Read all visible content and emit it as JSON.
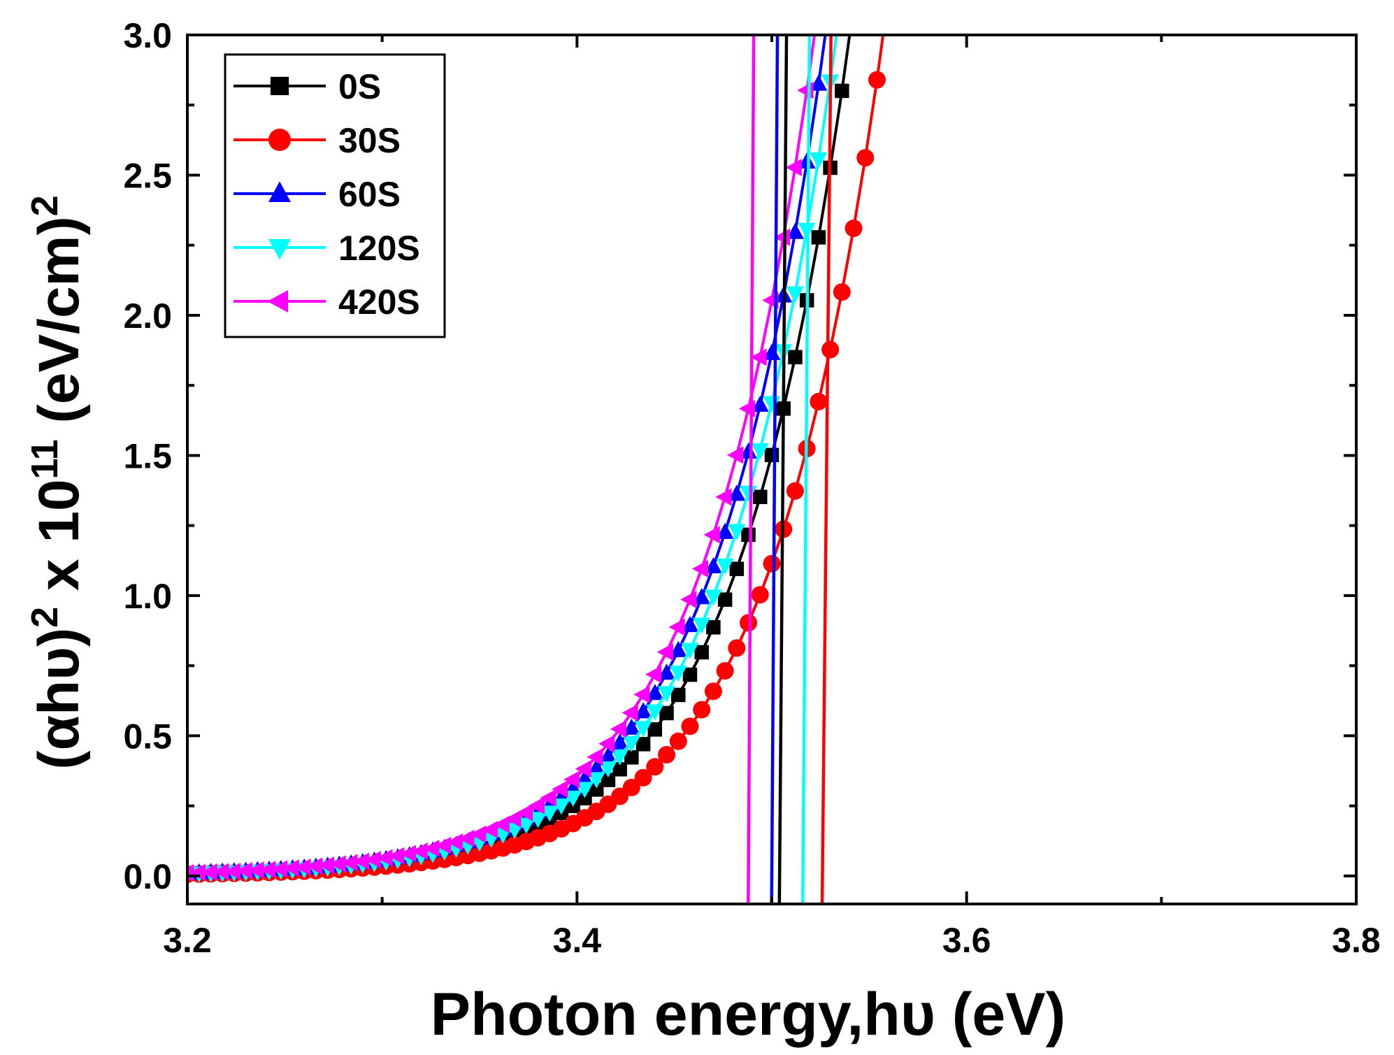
{
  "chart_data": {
    "type": "scatter",
    "title": "",
    "xlabel": "Photon energy,hυ (eV)",
    "ylabel": {
      "base": "(αhυ)",
      "sup1": "2",
      "mid": " x 10",
      "sup2": "11",
      "unit": " (eV/cm)",
      "sup3": "2"
    },
    "xlim": [
      3.2,
      3.8
    ],
    "ylim": [
      -0.1,
      3.0
    ],
    "xticks": [
      "3.2",
      "3.4",
      "3.6",
      "3.8"
    ],
    "yticks": [
      "0.0",
      "0.5",
      "1.0",
      "1.5",
      "2.0",
      "2.5",
      "3.0"
    ],
    "grid": false,
    "legend_position": "top-left",
    "series": [
      {
        "name": "0S",
        "color": "#000000",
        "marker": "square",
        "params": {
          "a": 0.008,
          "w": 0.0345,
          "x0": 3.5,
          "p": 3.8
        },
        "fit": [
          3.504,
          3.8
        ]
      },
      {
        "name": "30S",
        "color": "#ff0000",
        "marker": "circle",
        "params": {
          "a": 0.006,
          "w": 0.0375,
          "x0": 3.525,
          "p": 3.6
        },
        "fit": [
          3.526,
          3.8
        ]
      },
      {
        "name": "60S",
        "color": "#0000ff",
        "marker": "triangle-up",
        "params": {
          "a": 0.01,
          "w": 0.0345,
          "x0": 3.495,
          "p": 3.8
        },
        "fit": [
          3.5,
          3.8
        ]
      },
      {
        "name": "120S",
        "color": "#00ffff",
        "marker": "triangle-down",
        "params": {
          "a": 0.009,
          "w": 0.0345,
          "x0": 3.495,
          "p": 3.8
        },
        "fit": [
          3.516,
          3.793
        ]
      },
      {
        "name": "420S",
        "color": "#ff00ff",
        "marker": "triangle-left",
        "params": {
          "a": 0.011,
          "w": 0.0355,
          "x0": 3.49,
          "p": 3.8
        },
        "fit": [
          3.488,
          3.8
        ]
      }
    ]
  }
}
